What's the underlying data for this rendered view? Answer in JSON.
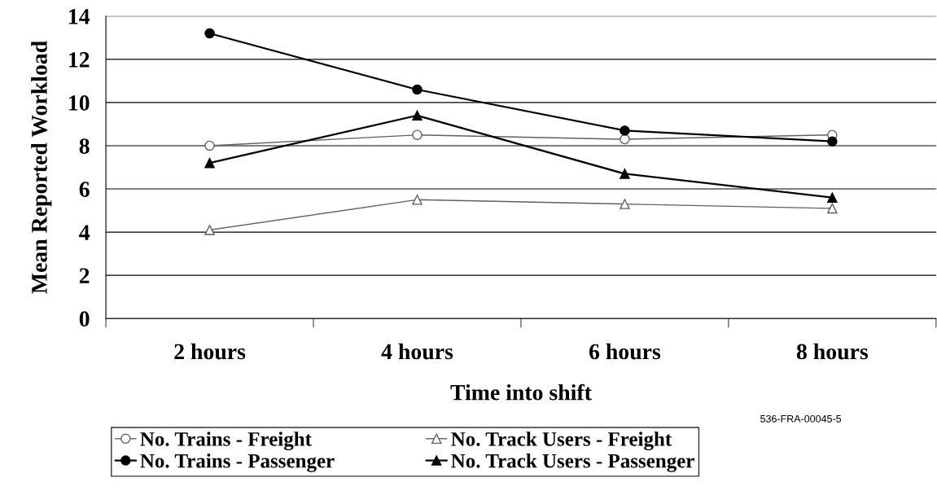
{
  "chart_data": {
    "type": "line",
    "xlabel": "Time into shift",
    "ylabel": "Mean Reported Workload",
    "categories": [
      "2 hours",
      "4 hours",
      "6 hours",
      "8 hours"
    ],
    "series": [
      {
        "name": "No. Trains - Freight",
        "color": "#606060",
        "marker": "circle",
        "values": [
          8.0,
          8.5,
          8.3,
          8.5
        ]
      },
      {
        "name": "No. Trains - Passenger",
        "color": "#000000",
        "marker": "circle",
        "values": [
          13.2,
          10.6,
          8.7,
          8.2
        ]
      },
      {
        "name": "No. Track Users - Freight",
        "color": "#606060",
        "marker": "triangle",
        "values": [
          4.1,
          5.5,
          5.3,
          5.1
        ]
      },
      {
        "name": "No. Track Users - Passenger",
        "color": "#000000",
        "marker": "triangle",
        "values": [
          7.2,
          9.4,
          6.7,
          5.6
        ]
      }
    ],
    "ylim": [
      0,
      14
    ],
    "yticks": [
      0,
      2,
      4,
      6,
      8,
      10,
      12,
      14
    ],
    "grid": "y",
    "legend": "bottom",
    "annotations": [
      "536-FRA-00045-5"
    ]
  }
}
